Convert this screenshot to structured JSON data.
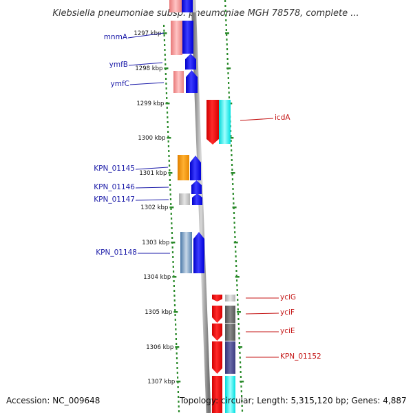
{
  "title": "Klebsiella pneumoniae subsp. pneumoniae MGH 78578, complete ...",
  "accession_text": "Accession: NC_009648",
  "summary_text": "Topology: circular; Length: 5,315,120 bp; Genes: 4,887",
  "colors": {
    "left_label": "#1a1aa8",
    "right_label": "#c41414",
    "dots": "#2a8a2a",
    "backbone": "#8a8a8a"
  },
  "ticks": [
    "1297 kbp",
    "1298 kbp",
    "1299 kbp",
    "1300 kbp",
    "1301 kbp",
    "1302 kbp",
    "1303 kbp",
    "1304 kbp",
    "1305 kbp",
    "1306 kbp",
    "1307 kbp"
  ],
  "left_labels": [
    "mnmA",
    "ymfB",
    "ymfC",
    "KPN_01145",
    "KPN_01146",
    "KPN_01147",
    "KPN_01148"
  ],
  "right_labels": [
    "icdA",
    "yciG",
    "yciF",
    "yciE",
    "KPN_01152"
  ]
}
